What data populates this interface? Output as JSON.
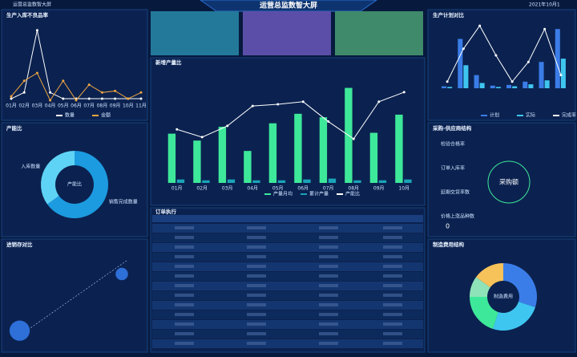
{
  "header": {
    "app": "运营总监数智大屏",
    "title": "运营总监数智大屏",
    "date": "2021年10月1"
  },
  "chart_data": [
    {
      "type": "line",
      "title": "生产入库不良品率",
      "categories": [
        "01月",
        "02月",
        "03月",
        "04月",
        "05月",
        "06月",
        "07月",
        "08月",
        "09月",
        "10月",
        "11月"
      ],
      "ylim": [
        0,
        100
      ],
      "series": [
        {
          "name": "数量",
          "color": "#ffffff",
          "values": [
            2,
            10,
            90,
            10,
            2,
            2,
            2,
            2,
            2,
            2,
            2
          ]
        },
        {
          "name": "金额",
          "color": "#f0a640",
          "values": [
            5,
            25,
            35,
            0,
            25,
            0,
            20,
            10,
            12,
            2,
            10
          ]
        }
      ]
    },
    {
      "type": "pie",
      "title": "产能比",
      "center": "产能比",
      "categories": [
        "销售完成数量",
        "入库数量"
      ],
      "values": [
        65,
        35
      ],
      "colors": [
        "#1c9be0",
        "#5fd3f5"
      ]
    },
    {
      "type": "scatter",
      "title": "进销存对比",
      "x": [
        3,
        88
      ],
      "y": [
        12,
        78
      ],
      "sizes": [
        40,
        15
      ],
      "xlim": [
        0,
        100
      ],
      "ylim": [
        0,
        100
      ],
      "color": "#2e6fd8"
    },
    {
      "type": "bar",
      "title": "新增产量比",
      "categories": [
        "01月",
        "02月",
        "03月",
        "04月",
        "05月",
        "06月",
        "07月",
        "08月",
        "09月",
        "10月"
      ],
      "ylim": [
        0,
        130
      ],
      "series": [
        {
          "name": "产量月均",
          "color": "#3ee89a",
          "values": [
            57,
            49,
            65,
            37,
            69,
            80,
            76,
            110,
            58,
            79
          ]
        },
        {
          "name": "累计产量",
          "color": "#1aa3b8",
          "values": [
            4,
            3,
            4,
            3,
            3,
            4,
            5,
            3,
            3,
            4
          ]
        },
        {
          "name": "产能比",
          "type": "line",
          "color": "#ffffff",
          "values": [
            62,
            53,
            66,
            89,
            91,
            94,
            71,
            51,
            94,
            105
          ]
        }
      ]
    },
    {
      "type": "bar",
      "title": "生产计划对比",
      "categories": [
        null,
        null,
        null,
        null,
        null,
        null,
        null,
        null
      ],
      "ylim": [
        0,
        100
      ],
      "series": [
        {
          "name": "计划",
          "color": "#3b7de8",
          "values": [
            3,
            75,
            20,
            4,
            5,
            10,
            40,
            90
          ]
        },
        {
          "name": "实际",
          "color": "#3ec6f0",
          "values": [
            2,
            35,
            8,
            2,
            3,
            6,
            12,
            45
          ]
        },
        {
          "name": "完成率",
          "type": "line",
          "color": "#ffffff",
          "values": [
            10,
            60,
            95,
            50,
            10,
            40,
            90,
            20
          ]
        }
      ]
    },
    {
      "type": "pie",
      "title": "制造费用结构",
      "center": "制造费用",
      "values": [
        30,
        25,
        20,
        10,
        15
      ],
      "colors": [
        "#3b7de8",
        "#3ec6f0",
        "#3ee89a",
        "#8fe3b8",
        "#f6c25a"
      ]
    }
  ],
  "procurement": {
    "title": "采购-供应商结构",
    "metrics": [
      "检验合格率",
      "订单入库率",
      "延期交货率数",
      "价格上涨品种数"
    ],
    "count": "0",
    "center": "采购额"
  },
  "table": {
    "title": "订单执行"
  }
}
